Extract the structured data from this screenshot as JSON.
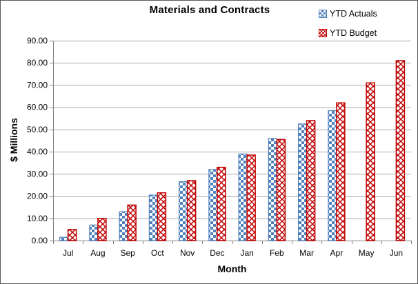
{
  "chart_data": {
    "type": "bar",
    "title": "Materials and Contracts",
    "xlabel": "Month",
    "ylabel": "$ Millions",
    "categories": [
      "Jul",
      "Aug",
      "Sep",
      "Oct",
      "Nov",
      "Dec",
      "Jan",
      "Feb",
      "Mar",
      "Apr",
      "May",
      "Jun"
    ],
    "series": [
      {
        "name": "YTD Actuals",
        "color": "#4F81BD",
        "pattern": "checkerboard",
        "values": [
          1.5,
          7,
          13,
          20.5,
          26.5,
          32,
          39,
          46,
          52.5,
          58.5,
          null,
          null
        ]
      },
      {
        "name": "YTD Budget",
        "color": "#C00000",
        "pattern": "diagonal-weave",
        "values": [
          5,
          10,
          16,
          21.5,
          27,
          33,
          38.5,
          45.5,
          54,
          62,
          71,
          81
        ]
      }
    ],
    "ylim": [
      0,
      90
    ],
    "ytick_step": 10,
    "y_tick_labels": [
      "0.00",
      "10.00",
      "20.00",
      "30.00",
      "40.00",
      "50.00",
      "60.00",
      "70.00",
      "80.00",
      "90.00"
    ],
    "legend_position": "top-right",
    "grid": "horizontal"
  },
  "colors": {
    "axis_line": "#808080",
    "gridline": "#A6A6A6",
    "text": "#000000",
    "frame_border": "#595959",
    "background": "#FFFFFF"
  }
}
